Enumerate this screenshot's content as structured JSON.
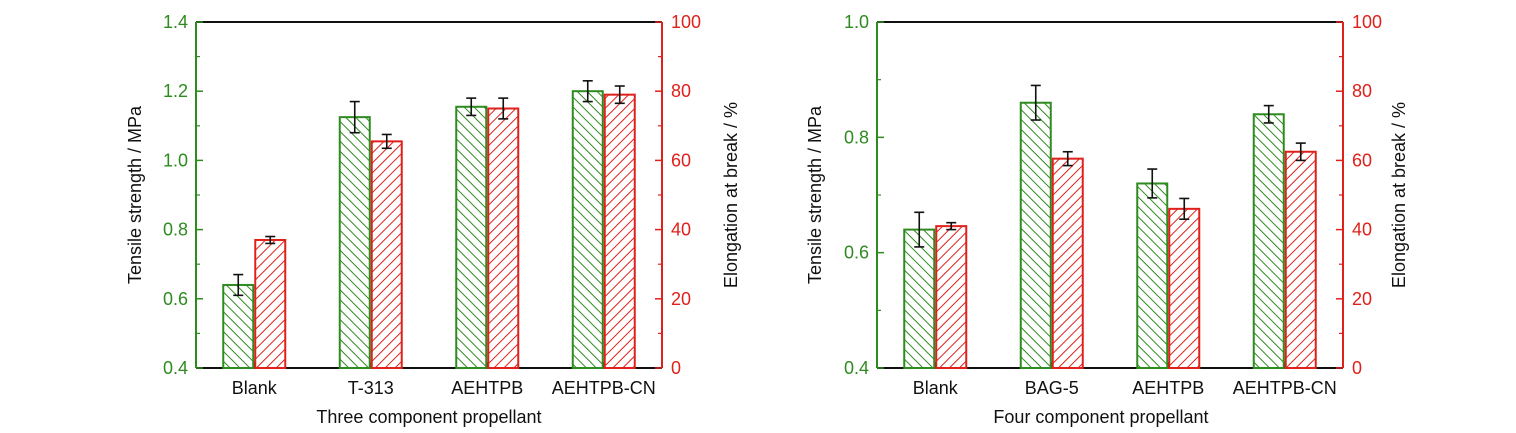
{
  "colors": {
    "tensile": "#2e8b1f",
    "elongation": "#e0201b",
    "axis": "#111111"
  },
  "chart_data": [
    {
      "type": "bar",
      "xlabel": "Three component propellant",
      "ylabel": "Tensile strength / MPa",
      "ylabel_right": "Elongation at break / %",
      "ylim": [
        0.4,
        1.4
      ],
      "ylim_right": [
        0,
        100
      ],
      "yticks": [
        "0.4",
        "0.6",
        "0.8",
        "1.0",
        "1.2",
        "1.4"
      ],
      "yticks_right": [
        "0",
        "20",
        "40",
        "60",
        "80",
        "100"
      ],
      "categories": [
        "Blank",
        "T-313",
        "AEHTPB",
        "AEHTPB-CN"
      ],
      "series": [
        {
          "axis": "left",
          "values": [
            0.64,
            1.125,
            1.155,
            1.2
          ],
          "errors": [
            0.03,
            0.045,
            0.025,
            0.03
          ]
        },
        {
          "axis": "right",
          "values": [
            37,
            65.5,
            75,
            79
          ],
          "errors": [
            1,
            2,
            3,
            2.5
          ]
        }
      ]
    },
    {
      "type": "bar",
      "xlabel": "Four component propellant",
      "ylabel": "Tensile strength / MPa",
      "ylabel_right": "Elongation at break / %",
      "ylim": [
        0.4,
        1.0
      ],
      "ylim_right": [
        0,
        100
      ],
      "yticks": [
        "0.4",
        "0.6",
        "0.8",
        "1.0"
      ],
      "yticks_right": [
        "0",
        "20",
        "40",
        "60",
        "80",
        "100"
      ],
      "categories": [
        "Blank",
        "BAG-5",
        "AEHTPB",
        "AEHTPB-CN"
      ],
      "series": [
        {
          "axis": "left",
          "values": [
            0.64,
            0.86,
            0.72,
            0.84
          ],
          "errors": [
            0.03,
            0.03,
            0.025,
            0.015
          ]
        },
        {
          "axis": "right",
          "values": [
            41,
            60.5,
            46,
            62.5
          ],
          "errors": [
            1,
            2,
            3,
            2.5
          ]
        }
      ]
    }
  ]
}
